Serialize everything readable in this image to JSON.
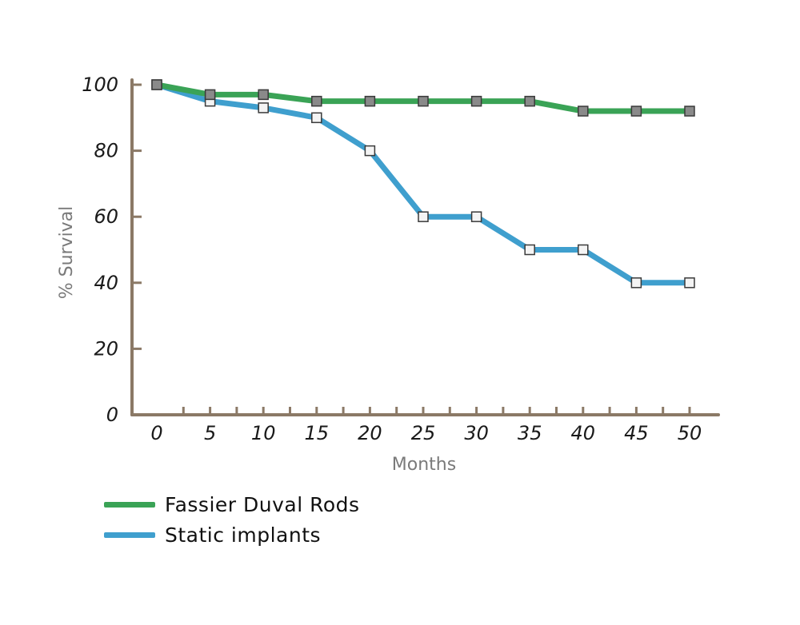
{
  "chart_data": {
    "type": "line",
    "xlabel": "Months",
    "ylabel": "% Survival",
    "x": [
      0,
      5,
      10,
      15,
      20,
      25,
      30,
      35,
      40,
      45,
      50
    ],
    "x_tick_labels": [
      "0",
      "5",
      "10",
      "15",
      "20",
      "25",
      "30",
      "35",
      "40",
      "45",
      "50"
    ],
    "y_tick_labels": [
      "0",
      "20",
      "40",
      "60",
      "80",
      "100"
    ],
    "xlim": [
      0,
      50
    ],
    "ylim": [
      0,
      100
    ],
    "grid": false,
    "legend_position": "bottom-left",
    "series": [
      {
        "name": "Fassier Duval Rods",
        "color": "#3aa356",
        "values": [
          100,
          97,
          97,
          95,
          95,
          95,
          95,
          95,
          92,
          92,
          92
        ]
      },
      {
        "name": "Static implants",
        "color": "#3f9fce",
        "values": [
          100,
          95,
          93,
          90,
          80,
          60,
          60,
          50,
          50,
          40,
          40
        ]
      }
    ],
    "axis_color": "#8b7966"
  }
}
